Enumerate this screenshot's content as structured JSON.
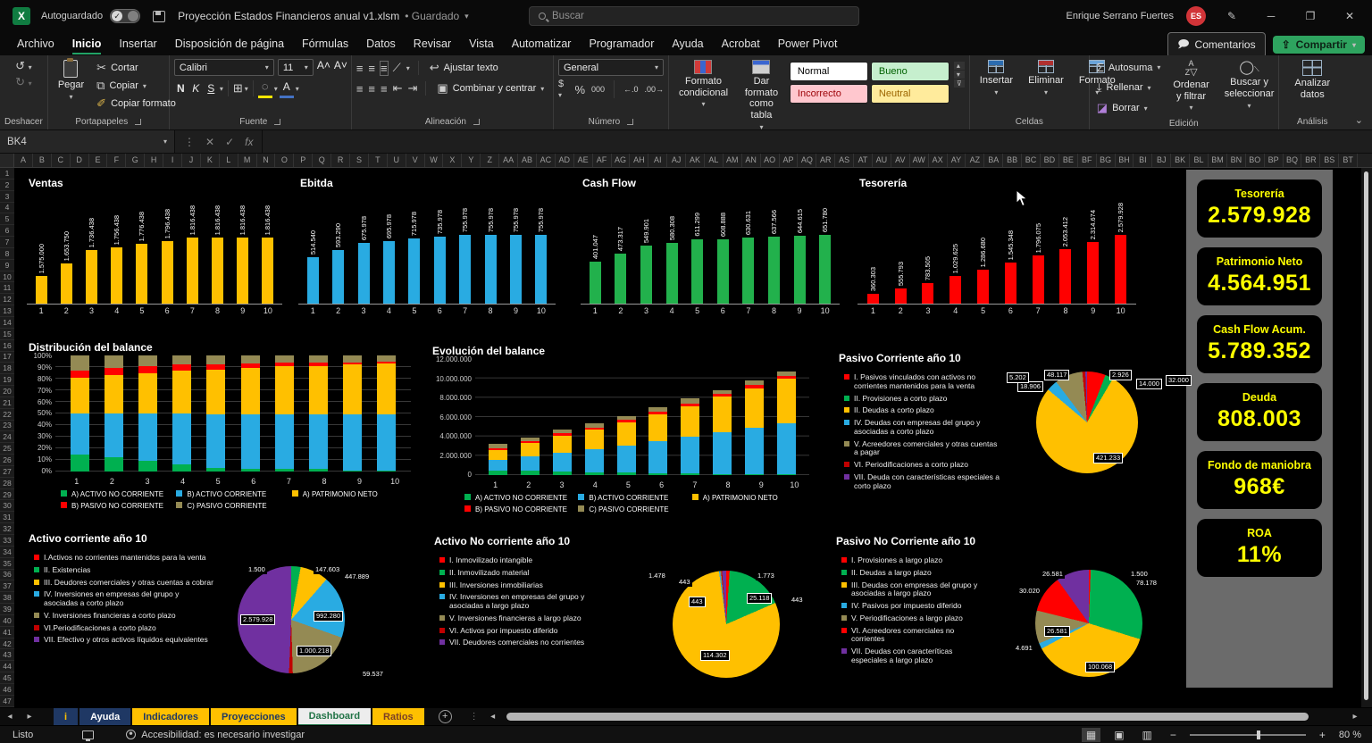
{
  "titlebar": {
    "autosave_label": "Autoguardado",
    "doc_title": "Proyección Estados Financieros anual v1.xlsm",
    "doc_status": "Guardado",
    "search_placeholder": "Buscar",
    "user_name": "Enrique Serrano Fuertes",
    "user_initials": "ES"
  },
  "menubar": {
    "tabs": [
      "Archivo",
      "Inicio",
      "Insertar",
      "Disposición de página",
      "Fórmulas",
      "Datos",
      "Revisar",
      "Vista",
      "Automatizar",
      "Programador",
      "Ayuda",
      "Acrobat",
      "Power Pivot"
    ],
    "active_tab": "Inicio",
    "comments_label": "Comentarios",
    "share_label": "Compartir"
  },
  "ribbon": {
    "undo_label": "Deshacer",
    "clipboard": {
      "label": "Portapapeles",
      "paste": "Pegar",
      "cut": "Cortar",
      "copy": "Copiar",
      "format_painter": "Copiar formato"
    },
    "font": {
      "label": "Fuente",
      "family": "Calibri",
      "size": "11",
      "bold": "N",
      "italic": "K",
      "underline": "S"
    },
    "alignment": {
      "label": "Alineación",
      "wrap": "Ajustar texto",
      "merge": "Combinar y centrar"
    },
    "number": {
      "label": "Número",
      "format": "General",
      "thousands": "000",
      "percent": "%"
    },
    "styles": {
      "label": "Estilos",
      "conditional": "Formato condicional",
      "as_table": "Dar formato como tabla",
      "items": [
        {
          "name": "Normal",
          "bg": "#FFFFFF",
          "fg": "#000000"
        },
        {
          "name": "Bueno",
          "bg": "#C6EFCE",
          "fg": "#006100"
        },
        {
          "name": "Incorrecto",
          "bg": "#FFC7CE",
          "fg": "#9C0006"
        },
        {
          "name": "Neutral",
          "bg": "#FFEB9C",
          "fg": "#9C6500"
        }
      ]
    },
    "cells": {
      "label": "Celdas",
      "insert": "Insertar",
      "delete": "Eliminar",
      "format": "Formato"
    },
    "editing": {
      "label": "Edición",
      "autosum": "Autosuma",
      "fill": "Rellenar",
      "clear": "Borrar",
      "sort": "Ordenar y filtrar",
      "find": "Buscar y seleccionar"
    },
    "analysis": {
      "label": "Análisis",
      "analyze": "Analizar datos"
    }
  },
  "formula_bar": {
    "name_box": "BK4"
  },
  "grid": {
    "first_col": "A",
    "last_col": "BT",
    "col_count": 72,
    "first_row": 1,
    "last_row": 47
  },
  "kpis": [
    {
      "label": "Tesorería",
      "value": "2.579.928"
    },
    {
      "label": "Patrimonio Neto",
      "value": "4.564.951"
    },
    {
      "label": "Cash Flow Acum.",
      "value": "5.789.352"
    },
    {
      "label": "Deuda",
      "value": "808.003"
    },
    {
      "label": "Fondo de maniobra",
      "value": "968€"
    },
    {
      "label": "ROA",
      "value": "11%"
    }
  ],
  "sheet_tabs": {
    "tabs": [
      {
        "label": "i",
        "bg": "#1F3864",
        "fg": "#FFC000"
      },
      {
        "label": "Ayuda",
        "bg": "#1F3864",
        "fg": "#FFFFFF"
      },
      {
        "label": "Indicadores",
        "bg": "#FFC000",
        "fg": "#1F3864"
      },
      {
        "label": "Proyecciones",
        "bg": "#FFC000",
        "fg": "#1F3864"
      },
      {
        "label": "Dashboard",
        "bg": "#EDEDED",
        "fg": "#217346",
        "active": true
      },
      {
        "label": "Ratios",
        "bg": "#FFC000",
        "fg": "#7B3F26"
      }
    ]
  },
  "status_bar": {
    "ready": "Listo",
    "accessibility": "Accesibilidad: es necesario investigar",
    "zoom": "80 %"
  },
  "chart_data": [
    {
      "id": "ventas",
      "type": "bar",
      "title": "Ventas",
      "color": "#FFC000",
      "ylim": [
        1400000,
        1850000
      ],
      "categories": [
        "1",
        "2",
        "3",
        "4",
        "5",
        "6",
        "7",
        "8",
        "9",
        "10"
      ],
      "values": [
        1575000,
        1653750,
        1736438,
        1756438,
        1776438,
        1796438,
        1816438,
        1816438,
        1816438,
        1816438
      ],
      "labels": [
        "1.575.000",
        "1.653.750",
        "1.736.438",
        "1.756.438",
        "1.776.438",
        "1.796.438",
        "1.816.438",
        "1.816.438",
        "1.816.438",
        "1.816.438"
      ]
    },
    {
      "id": "ebitda",
      "type": "bar",
      "title": "Ebitda",
      "color": "#29ABE2",
      "ylim": [
        0,
        790000
      ],
      "categories": [
        "1",
        "2",
        "3",
        "4",
        "5",
        "6",
        "7",
        "8",
        "9",
        "10"
      ],
      "values": [
        514540,
        593290,
        675978,
        695978,
        715978,
        735978,
        755978,
        755978,
        755978,
        755978
      ],
      "labels": [
        "514.540",
        "593.290",
        "675.978",
        "695.978",
        "715.978",
        "735.978",
        "755.978",
        "755.978",
        "755.978",
        "755.978"
      ]
    },
    {
      "id": "cashflow",
      "type": "bar",
      "title": "Cash Flow",
      "color": "#22B14C",
      "ylim": [
        0,
        680000
      ],
      "categories": [
        "1",
        "2",
        "3",
        "4",
        "5",
        "6",
        "7",
        "8",
        "9",
        "10"
      ],
      "values": [
        401047,
        473317,
        549901,
        580308,
        611299,
        608888,
        630631,
        637566,
        644615,
        651780
      ],
      "labels": [
        "401.047",
        "473.317",
        "549.901",
        "580.308",
        "611.299",
        "608.888",
        "630.631",
        "637.566",
        "644.615",
        "651.780"
      ]
    },
    {
      "id": "tesoreria",
      "type": "bar",
      "title": "Tesorería",
      "color": "#FF0000",
      "ylim": [
        0,
        2680000
      ],
      "categories": [
        "1",
        "2",
        "3",
        "4",
        "5",
        "6",
        "7",
        "8",
        "9",
        "10"
      ],
      "values": [
        360303,
        555793,
        783505,
        1029625,
        1286680,
        1545348,
        1796075,
        2053412,
        2314674,
        2579928
      ],
      "labels": [
        "360.303",
        "555.793",
        "783.505",
        "1.029.625",
        "1.286.680",
        "1.545.348",
        "1.796.075",
        "2.053.412",
        "2.314.674",
        "2.579.928"
      ]
    },
    {
      "id": "distribucion",
      "type": "stacked-bar-100",
      "title": "Distribución del balance",
      "categories": [
        "1",
        "2",
        "3",
        "4",
        "5",
        "6",
        "7",
        "8",
        "9",
        "10"
      ],
      "yticks": [
        "100%",
        "90%",
        "80%",
        "70%",
        "60%",
        "50%",
        "40%",
        "30%",
        "20%",
        "10%",
        "0%"
      ],
      "series": [
        {
          "name": "A) ACTIVO NO CORRIENTE",
          "color": "#00B050",
          "values": [
            15,
            12,
            9,
            6,
            3,
            2,
            2,
            2,
            1,
            1
          ]
        },
        {
          "name": "B) ACTIVO CORRIENTE",
          "color": "#29ABE2",
          "values": [
            35,
            38,
            41,
            44,
            46,
            47,
            47,
            47,
            48,
            48
          ]
        },
        {
          "name": "A) PATRIMONIO NETO",
          "color": "#FFC000",
          "values": [
            31,
            33,
            35,
            37,
            39,
            40,
            42,
            42,
            43,
            44
          ]
        },
        {
          "name": "B) PASIVO NO CORRIENTE",
          "color": "#FF0000",
          "values": [
            6,
            6,
            6,
            5,
            4,
            4,
            3,
            3,
            2,
            2
          ]
        },
        {
          "name": "C) PASIVO CORRIENTE",
          "color": "#948A54",
          "values": [
            13,
            11,
            9,
            8,
            8,
            7,
            6,
            6,
            6,
            5
          ]
        }
      ]
    },
    {
      "id": "evolucion",
      "type": "stacked-bar",
      "title": "Evolución del balance",
      "ymax": 12000000,
      "categories": [
        "1",
        "2",
        "3",
        "4",
        "5",
        "6",
        "7",
        "8",
        "9",
        "10"
      ],
      "yticks": [
        "12.000.000",
        "10.000.000",
        "8.000.000",
        "6.000.000",
        "4.000.000",
        "2.000.000",
        "0"
      ],
      "series": [
        {
          "name": "A) ACTIVO NO CORRIENTE",
          "color": "#00B050",
          "values": [
            500000,
            450000,
            400000,
            320000,
            250000,
            180000,
            150000,
            120000,
            100000,
            80000
          ]
        },
        {
          "name": "B) ACTIVO CORRIENTE",
          "color": "#29ABE2",
          "values": [
            1100000,
            1450000,
            1900000,
            2400000,
            2800000,
            3300000,
            3800000,
            4300000,
            4800000,
            5300000
          ]
        },
        {
          "name": "A) PATRIMONIO NETO",
          "color": "#FFC000",
          "values": [
            1000000,
            1400000,
            1800000,
            1950000,
            2400000,
            2800000,
            3200000,
            3700000,
            4100000,
            4600000
          ]
        },
        {
          "name": "B) PASIVO NO CORRIENTE",
          "color": "#FF0000",
          "values": [
            200000,
            200000,
            200000,
            250000,
            250000,
            280000,
            280000,
            280000,
            280000,
            260000
          ]
        },
        {
          "name": "C) PASIVO CORRIENTE",
          "color": "#948A54",
          "values": [
            400000,
            400000,
            400000,
            480000,
            400000,
            440000,
            470000,
            400000,
            520000,
            510000
          ]
        }
      ]
    },
    {
      "id": "pie_pc",
      "type": "pie",
      "title": "Pasivo Corriente año 10",
      "slices": [
        {
          "name": "I. Pasivos vinculados con activos no corrientes mantenidos para la venta",
          "color": "#FF0000",
          "value": 32000,
          "label": "32.000"
        },
        {
          "name": "II. Provisiones a corto plazo",
          "color": "#00B050",
          "value": 14000,
          "label": "14.000"
        },
        {
          "name": "II. Deudas a corto plazo",
          "color": "#FFC000",
          "value": 421233,
          "label": "421.233"
        },
        {
          "name": "IV. Deudas con empresas del grupo y asociadas a corto plazo",
          "color": "#29ABE2",
          "value": 18906,
          "label": "18.906"
        },
        {
          "name": "V.  Acreedores comerciales y otras cuentas a pagar",
          "color": "#948A54",
          "value": 48117,
          "label": "48.117"
        },
        {
          "name": "VI. Periodificaciones a corto plazo",
          "color": "#C00000",
          "value": 5202,
          "label": "5.202"
        },
        {
          "name": "VII. Deuda con características especiales a corto plazo",
          "color": "#7030A0",
          "value": 2926,
          "label": "2.926"
        }
      ]
    },
    {
      "id": "pie_ac",
      "type": "pie",
      "title": "Activo corriente año 10",
      "slices": [
        {
          "name": "I.Activos no corrientes mantenidos para la venta",
          "color": "#FF0000",
          "value": 1500,
          "label": "1.500"
        },
        {
          "name": "II. Existencias",
          "color": "#00B050",
          "value": 147603,
          "label": "147.603"
        },
        {
          "name": "III. Deudores comerciales y otras cuentas a cobrar",
          "color": "#FFC000",
          "value": 447889,
          "label": "447.889"
        },
        {
          "name": "IV. Inversiones en empresas del grupo y asociadas a corto plazo",
          "color": "#29ABE2",
          "value": 992280,
          "label": "992.280"
        },
        {
          "name": "V. Inversiones financieras a corto plazo",
          "color": "#948A54",
          "value": 1000218,
          "label": "1.000.218"
        },
        {
          "name": "VI.Periodificaciones a corto plazo",
          "color": "#C00000",
          "value": 59537,
          "label": "59.537"
        },
        {
          "name": "VII. Efectivo y otros activos líquidos equivalentes",
          "color": "#7030A0",
          "value": 2579928,
          "label": "2.579.928"
        }
      ]
    },
    {
      "id": "pie_anc",
      "type": "pie",
      "title": "Activo No corriente año 10",
      "slices": [
        {
          "name": "I. Inmovilizado intangible",
          "color": "#FF0000",
          "value": 1478,
          "label": "1.478"
        },
        {
          "name": "II. Inmovilizado material",
          "color": "#00B050",
          "value": 25118,
          "label": "25.118"
        },
        {
          "name": "III. Inversiones inmobiliarias",
          "color": "#FFC000",
          "value": 114302,
          "label": "114.302"
        },
        {
          "name": "IV. Inversiones en empresas del grupo y asociadas a largo plazo",
          "color": "#29ABE2",
          "value": 443,
          "label": "443"
        },
        {
          "name": "V. Inversiones financieras a largo plazo",
          "color": "#948A54",
          "value": 443,
          "label": "443"
        },
        {
          "name": "VI. Activos por impuesto diferido",
          "color": "#C00000",
          "value": 443,
          "label": "443"
        },
        {
          "name": "VII. Deudores comerciales no corrientes",
          "color": "#7030A0",
          "value": 1773,
          "label": "1.773"
        }
      ]
    },
    {
      "id": "pie_pnc",
      "type": "pie",
      "title": "Pasivo No Corriente año 10",
      "slices": [
        {
          "name": "I. Provisiones a largo plazo",
          "color": "#FF0000",
          "value": 1500,
          "label": "1.500"
        },
        {
          "name": "II. Deudas a largo plazo",
          "color": "#00B050",
          "value": 78178,
          "label": "78.178"
        },
        {
          "name": "III. Deudas con empresas del grupo y asociadas a largo plazo",
          "color": "#FFC000",
          "value": 100068,
          "label": "100.068"
        },
        {
          "name": "IV. Pasivos por impuesto diferido",
          "color": "#29ABE2",
          "value": 4691,
          "label": "4.691"
        },
        {
          "name": "V. Periodificaciones a largo plazo",
          "color": "#948A54",
          "value": 26581,
          "label": "26.581"
        },
        {
          "name": "VI. Acreedores comerciales no corrientes",
          "color": "#FF0000",
          "value": 30020,
          "label": "30.020"
        },
        {
          "name": "VII. Deudas con caracteríticas especiales a largo plazo",
          "color": "#7030A0",
          "value": 26581,
          "label": "26.581"
        }
      ]
    }
  ]
}
